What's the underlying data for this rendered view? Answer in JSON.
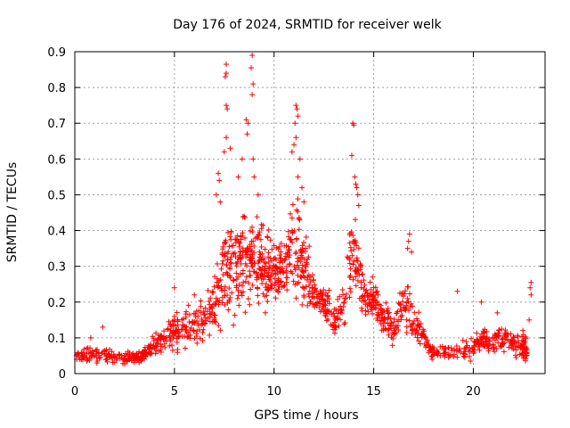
{
  "chart_data": {
    "type": "scatter",
    "title": "Day 176 of 2024, SRMTID for receiver welk",
    "xlabel": "GPS time / hours",
    "ylabel": "SRMTID / TECUs",
    "xlim": [
      0,
      23.6
    ],
    "ylim": [
      0,
      0.9
    ],
    "xticks": [
      0,
      5,
      10,
      15,
      20
    ],
    "yticks": [
      0,
      0.1,
      0.2,
      0.3,
      0.4,
      0.5,
      0.6,
      0.7,
      0.8,
      0.9
    ],
    "grid": true,
    "marker": "+",
    "color": "#ff0000",
    "envelope": [
      {
        "x": 0.0,
        "base": 0.05,
        "spread": 0.03,
        "n": 40
      },
      {
        "x": 1.0,
        "base": 0.05,
        "spread": 0.03,
        "n": 40
      },
      {
        "x": 2.0,
        "base": 0.045,
        "spread": 0.025,
        "n": 40
      },
      {
        "x": 3.0,
        "base": 0.045,
        "spread": 0.025,
        "n": 40
      },
      {
        "x": 3.5,
        "base": 0.05,
        "spread": 0.03,
        "n": 30
      },
      {
        "x": 4.0,
        "base": 0.08,
        "spread": 0.04,
        "n": 30
      },
      {
        "x": 4.5,
        "base": 0.1,
        "spread": 0.05,
        "n": 30
      },
      {
        "x": 5.0,
        "base": 0.12,
        "spread": 0.07,
        "n": 30
      },
      {
        "x": 5.5,
        "base": 0.12,
        "spread": 0.07,
        "n": 30
      },
      {
        "x": 6.0,
        "base": 0.13,
        "spread": 0.08,
        "n": 30
      },
      {
        "x": 6.5,
        "base": 0.15,
        "spread": 0.08,
        "n": 30
      },
      {
        "x": 7.0,
        "base": 0.2,
        "spread": 0.12,
        "n": 40
      },
      {
        "x": 7.5,
        "base": 0.3,
        "spread": 0.2,
        "n": 50
      },
      {
        "x": 8.0,
        "base": 0.3,
        "spread": 0.2,
        "n": 50
      },
      {
        "x": 8.5,
        "base": 0.3,
        "spread": 0.18,
        "n": 50
      },
      {
        "x": 9.0,
        "base": 0.32,
        "spread": 0.2,
        "n": 50
      },
      {
        "x": 9.5,
        "base": 0.3,
        "spread": 0.15,
        "n": 50
      },
      {
        "x": 10.0,
        "base": 0.28,
        "spread": 0.12,
        "n": 50
      },
      {
        "x": 10.5,
        "base": 0.3,
        "spread": 0.1,
        "n": 40
      },
      {
        "x": 11.0,
        "base": 0.35,
        "spread": 0.25,
        "n": 50
      },
      {
        "x": 11.5,
        "base": 0.3,
        "spread": 0.15,
        "n": 40
      },
      {
        "x": 12.0,
        "base": 0.22,
        "spread": 0.08,
        "n": 40
      },
      {
        "x": 12.5,
        "base": 0.2,
        "spread": 0.08,
        "n": 30
      },
      {
        "x": 13.0,
        "base": 0.15,
        "spread": 0.06,
        "n": 30
      },
      {
        "x": 13.5,
        "base": 0.2,
        "spread": 0.1,
        "n": 30
      },
      {
        "x": 14.0,
        "base": 0.35,
        "spread": 0.15,
        "n": 40
      },
      {
        "x": 14.5,
        "base": 0.22,
        "spread": 0.1,
        "n": 40
      },
      {
        "x": 15.0,
        "base": 0.22,
        "spread": 0.08,
        "n": 40
      },
      {
        "x": 15.5,
        "base": 0.15,
        "spread": 0.08,
        "n": 30
      },
      {
        "x": 16.0,
        "base": 0.12,
        "spread": 0.06,
        "n": 30
      },
      {
        "x": 16.5,
        "base": 0.2,
        "spread": 0.12,
        "n": 30
      },
      {
        "x": 17.0,
        "base": 0.15,
        "spread": 0.08,
        "n": 30
      },
      {
        "x": 17.5,
        "base": 0.1,
        "spread": 0.05,
        "n": 30
      },
      {
        "x": 18.0,
        "base": 0.06,
        "spread": 0.03,
        "n": 30
      },
      {
        "x": 19.0,
        "base": 0.06,
        "spread": 0.03,
        "n": 30
      },
      {
        "x": 20.0,
        "base": 0.07,
        "spread": 0.04,
        "n": 30
      },
      {
        "x": 20.5,
        "base": 0.1,
        "spread": 0.05,
        "n": 30
      },
      {
        "x": 21.0,
        "base": 0.09,
        "spread": 0.05,
        "n": 30
      },
      {
        "x": 21.5,
        "base": 0.1,
        "spread": 0.05,
        "n": 30
      },
      {
        "x": 22.0,
        "base": 0.08,
        "spread": 0.05,
        "n": 30
      },
      {
        "x": 22.5,
        "base": 0.08,
        "spread": 0.05,
        "n": 30
      },
      {
        "x": 22.7,
        "base": 0.06,
        "spread": 0.04,
        "n": 10
      }
    ],
    "peaks": [
      {
        "x": 7.6,
        "y": 0.865
      },
      {
        "x": 7.6,
        "y": 0.84
      },
      {
        "x": 7.55,
        "y": 0.83
      },
      {
        "x": 7.6,
        "y": 0.75
      },
      {
        "x": 7.65,
        "y": 0.74
      },
      {
        "x": 7.5,
        "y": 0.62
      },
      {
        "x": 7.6,
        "y": 0.66
      },
      {
        "x": 7.8,
        "y": 0.63
      },
      {
        "x": 7.2,
        "y": 0.56
      },
      {
        "x": 7.25,
        "y": 0.54
      },
      {
        "x": 7.1,
        "y": 0.5
      },
      {
        "x": 7.3,
        "y": 0.48
      },
      {
        "x": 8.9,
        "y": 0.89
      },
      {
        "x": 8.85,
        "y": 0.855
      },
      {
        "x": 8.95,
        "y": 0.81
      },
      {
        "x": 8.6,
        "y": 0.71
      },
      {
        "x": 8.7,
        "y": 0.7
      },
      {
        "x": 8.65,
        "y": 0.67
      },
      {
        "x": 8.9,
        "y": 0.78
      },
      {
        "x": 8.95,
        "y": 0.6
      },
      {
        "x": 9.0,
        "y": 0.55
      },
      {
        "x": 8.2,
        "y": 0.55
      },
      {
        "x": 8.4,
        "y": 0.6
      },
      {
        "x": 9.2,
        "y": 0.5
      },
      {
        "x": 11.1,
        "y": 0.75
      },
      {
        "x": 11.15,
        "y": 0.74
      },
      {
        "x": 11.2,
        "y": 0.72
      },
      {
        "x": 11.05,
        "y": 0.7
      },
      {
        "x": 11.1,
        "y": 0.66
      },
      {
        "x": 11.0,
        "y": 0.64
      },
      {
        "x": 10.9,
        "y": 0.62
      },
      {
        "x": 11.3,
        "y": 0.6
      },
      {
        "x": 11.2,
        "y": 0.55
      },
      {
        "x": 11.4,
        "y": 0.52
      },
      {
        "x": 11.5,
        "y": 0.48
      },
      {
        "x": 13.95,
        "y": 0.7
      },
      {
        "x": 14.0,
        "y": 0.695
      },
      {
        "x": 13.9,
        "y": 0.61
      },
      {
        "x": 14.05,
        "y": 0.55
      },
      {
        "x": 14.1,
        "y": 0.53
      },
      {
        "x": 14.15,
        "y": 0.52
      },
      {
        "x": 14.2,
        "y": 0.5
      },
      {
        "x": 14.25,
        "y": 0.47
      },
      {
        "x": 16.8,
        "y": 0.39
      },
      {
        "x": 16.75,
        "y": 0.37
      },
      {
        "x": 16.7,
        "y": 0.35
      },
      {
        "x": 16.9,
        "y": 0.34
      },
      {
        "x": 22.9,
        "y": 0.255
      },
      {
        "x": 22.85,
        "y": 0.24
      },
      {
        "x": 22.9,
        "y": 0.22
      },
      {
        "x": 22.8,
        "y": 0.15
      },
      {
        "x": 6.0,
        "y": 0.22
      },
      {
        "x": 5.0,
        "y": 0.24
      },
      {
        "x": 1.4,
        "y": 0.13
      },
      {
        "x": 0.8,
        "y": 0.1
      },
      {
        "x": 19.2,
        "y": 0.23
      },
      {
        "x": 20.4,
        "y": 0.2
      },
      {
        "x": 21.2,
        "y": 0.17
      }
    ]
  }
}
